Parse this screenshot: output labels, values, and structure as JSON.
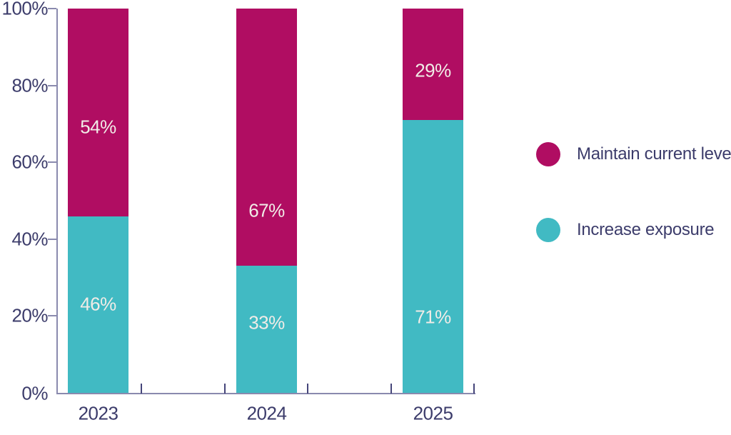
{
  "chart_data": {
    "type": "bar",
    "variant": "stacked-100-percent-column",
    "title": "",
    "categories": [
      "2023",
      "2024",
      "2025"
    ],
    "series": [
      {
        "name": "Increase exposure",
        "color": "#41BAC3",
        "values": [
          46,
          33,
          71
        ],
        "data_labels": [
          "46%",
          "33%",
          "71%"
        ]
      },
      {
        "name": "Maintain current level",
        "color": "#B00D62",
        "values": [
          54,
          67,
          29
        ],
        "data_labels": [
          "54%",
          "67%",
          "29%"
        ]
      }
    ],
    "stack_order_bottom_to_top": [
      "Increase exposure",
      "Maintain current level"
    ],
    "y_axis": {
      "min": 0,
      "max": 100,
      "tick_labels": [
        "0%",
        "20%",
        "40%",
        "60%",
        "80%",
        "100%"
      ]
    },
    "x_axis": {
      "tick_labels": [
        "2023",
        "2024",
        "2025"
      ]
    },
    "grid": false,
    "legend": {
      "position": "right",
      "items": [
        {
          "label": "Maintain current level",
          "color": "#B00D62"
        },
        {
          "label": "Increase exposure",
          "color": "#41BAC3"
        }
      ]
    }
  },
  "colors": {
    "background": "#FFFFFF",
    "axis_line": "#8A8AAE",
    "axis_tick": "#45457A",
    "axis_text": "#3C3C6B",
    "bar_label_text": "#F1ECE7"
  }
}
